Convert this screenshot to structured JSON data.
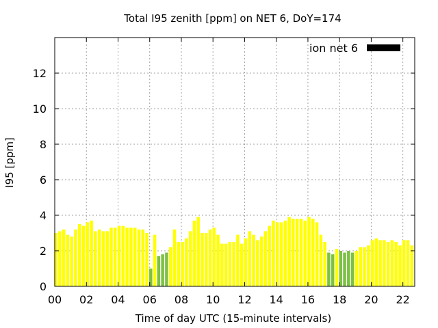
{
  "chart_data": {
    "type": "bar",
    "title": "Total I95 zenith [ppm] on NET 6, DoY=174",
    "xlabel": "Time of day UTC (15-minute intervals)",
    "ylabel": "I95 [ppm]",
    "xlim": [
      0,
      22.75
    ],
    "ylim": [
      0,
      14
    ],
    "x_ticks": [
      0,
      2,
      4,
      6,
      8,
      10,
      12,
      14,
      16,
      18,
      20,
      22
    ],
    "x_tick_labels": [
      "00",
      "02",
      "04",
      "06",
      "08",
      "10",
      "12",
      "14",
      "16",
      "18",
      "20",
      "22"
    ],
    "y_ticks": [
      0,
      2,
      4,
      6,
      8,
      10,
      12
    ],
    "grid": true,
    "legend": {
      "label": "ion net 6",
      "swatch_color": "#000000",
      "placement": "top-right"
    },
    "colors": {
      "normal": "#ffff00",
      "low": "#7cc144"
    },
    "bar_interval_hours": 0.25,
    "series": [
      {
        "name": "ion net 6",
        "x": [
          0.0,
          0.25,
          0.5,
          0.75,
          1.0,
          1.25,
          1.5,
          1.75,
          2.0,
          2.25,
          2.5,
          2.75,
          3.0,
          3.25,
          3.5,
          3.75,
          4.0,
          4.25,
          4.5,
          4.75,
          5.0,
          5.25,
          5.5,
          5.75,
          6.0,
          6.25,
          6.5,
          6.75,
          7.0,
          7.25,
          7.5,
          7.75,
          8.0,
          8.25,
          8.5,
          8.75,
          9.0,
          9.25,
          9.5,
          9.75,
          10.0,
          10.25,
          10.5,
          10.75,
          11.0,
          11.25,
          11.5,
          11.75,
          12.0,
          12.25,
          12.5,
          12.75,
          13.0,
          13.25,
          13.5,
          13.75,
          14.0,
          14.25,
          14.5,
          14.75,
          15.0,
          15.25,
          15.5,
          15.75,
          16.0,
          16.25,
          16.5,
          16.75,
          17.0,
          17.25,
          17.5,
          17.75,
          18.0,
          18.25,
          18.5,
          18.75,
          19.0,
          19.25,
          19.5,
          19.75,
          20.0,
          20.25,
          20.5,
          20.75,
          21.0,
          21.25,
          21.5,
          21.75,
          22.0,
          22.25,
          22.5
        ],
        "values": [
          3.0,
          3.1,
          3.2,
          2.9,
          2.8,
          3.2,
          3.5,
          3.4,
          3.6,
          3.7,
          3.1,
          3.2,
          3.1,
          3.1,
          3.3,
          3.3,
          3.4,
          3.4,
          3.3,
          3.3,
          3.3,
          3.2,
          3.2,
          3.0,
          1.0,
          2.9,
          1.7,
          1.8,
          1.9,
          2.2,
          3.2,
          2.5,
          2.5,
          2.7,
          3.1,
          3.7,
          3.9,
          3.0,
          3.0,
          3.2,
          3.3,
          2.9,
          2.4,
          2.4,
          2.5,
          2.5,
          2.9,
          2.4,
          2.7,
          3.1,
          2.9,
          2.6,
          2.8,
          3.1,
          3.4,
          3.7,
          3.6,
          3.6,
          3.7,
          3.9,
          3.8,
          3.8,
          3.8,
          3.7,
          3.9,
          3.8,
          3.6,
          2.9,
          2.5,
          1.9,
          1.8,
          2.1,
          2.0,
          1.9,
          2.0,
          1.9,
          2.0,
          2.2,
          2.2,
          2.3,
          2.6,
          2.7,
          2.6,
          2.6,
          2.5,
          2.6,
          2.5,
          2.3,
          2.6,
          2.6,
          2.3
        ],
        "color_class": [
          "normal",
          "normal",
          "normal",
          "normal",
          "normal",
          "normal",
          "normal",
          "normal",
          "normal",
          "normal",
          "normal",
          "normal",
          "normal",
          "normal",
          "normal",
          "normal",
          "normal",
          "normal",
          "normal",
          "normal",
          "normal",
          "normal",
          "normal",
          "normal",
          "low",
          "normal",
          "low",
          "low",
          "low",
          "normal",
          "normal",
          "normal",
          "normal",
          "normal",
          "normal",
          "normal",
          "normal",
          "normal",
          "normal",
          "normal",
          "normal",
          "normal",
          "normal",
          "normal",
          "normal",
          "normal",
          "normal",
          "normal",
          "normal",
          "normal",
          "normal",
          "normal",
          "normal",
          "normal",
          "normal",
          "normal",
          "normal",
          "normal",
          "normal",
          "normal",
          "normal",
          "normal",
          "normal",
          "normal",
          "normal",
          "normal",
          "normal",
          "normal",
          "normal",
          "low",
          "low",
          "normal",
          "low",
          "low",
          "low",
          "low",
          "normal",
          "normal",
          "normal",
          "normal",
          "normal",
          "normal",
          "normal",
          "normal",
          "normal",
          "normal",
          "normal",
          "normal",
          "normal",
          "normal",
          "normal"
        ]
      }
    ]
  }
}
